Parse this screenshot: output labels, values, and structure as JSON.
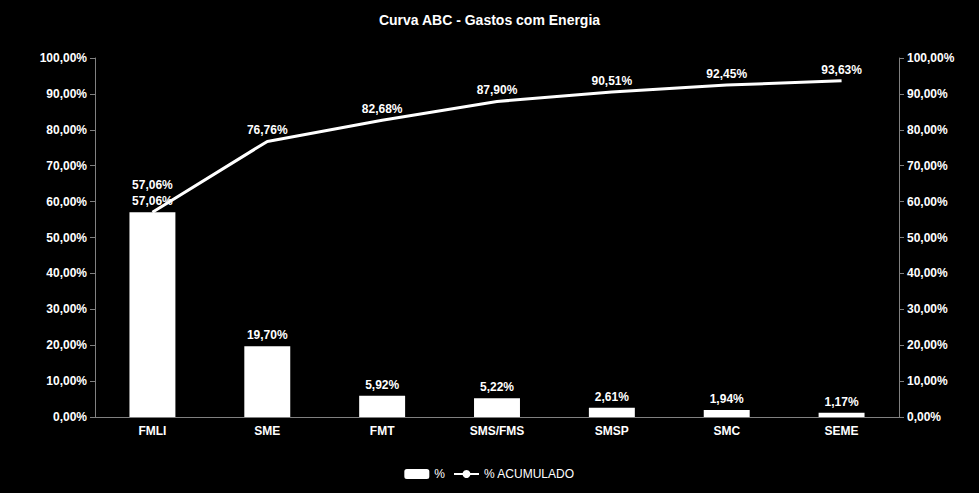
{
  "chart_data": {
    "type": "bar",
    "title": "Curva ABC - Gastos com Energia",
    "categories": [
      "FMLI",
      "SME",
      "FMT",
      "SMS/FMS",
      "SMSP",
      "SMC",
      "SEME"
    ],
    "series": [
      {
        "name": "%",
        "type": "bar",
        "color": "#ffffff",
        "values": [
          57.06,
          19.7,
          5.92,
          5.22,
          2.61,
          1.94,
          1.17
        ],
        "value_labels": [
          "57,06%",
          "19,70%",
          "5,92%",
          "5,22%",
          "2,61%",
          "1,94%",
          "1,17%"
        ]
      },
      {
        "name": "% ACUMULADO",
        "type": "line",
        "color": "#ffffff",
        "axis": "y2",
        "values": [
          57.06,
          76.76,
          82.68,
          87.9,
          90.51,
          92.45,
          93.63
        ],
        "value_labels": [
          "57,06%",
          "76,76%",
          "82,68%",
          "87,90%",
          "90,51%",
          "92,45%",
          "93,63%"
        ]
      }
    ],
    "ylim": [
      0,
      100
    ],
    "yticks": [
      {
        "value": 0,
        "label": "0,00%"
      },
      {
        "value": 10,
        "label": "10,00%"
      },
      {
        "value": 20,
        "label": "20,00%"
      },
      {
        "value": 30,
        "label": "30,00%"
      },
      {
        "value": 40,
        "label": "40,00%"
      },
      {
        "value": 50,
        "label": "50,00%"
      },
      {
        "value": 60,
        "label": "60,00%"
      },
      {
        "value": 70,
        "label": "70,00%"
      },
      {
        "value": 80,
        "label": "80,00%"
      },
      {
        "value": 90,
        "label": "90,00%"
      },
      {
        "value": 100,
        "label": "100,00%"
      }
    ],
    "y2lim": [
      0,
      100
    ],
    "y2ticks": [
      {
        "value": 0,
        "label": "0,00%"
      },
      {
        "value": 10,
        "label": "10,00%"
      },
      {
        "value": 20,
        "label": "20,00%"
      },
      {
        "value": 30,
        "label": "30,00%"
      },
      {
        "value": 40,
        "label": "40,00%"
      },
      {
        "value": 50,
        "label": "50,00%"
      },
      {
        "value": 60,
        "label": "60,00%"
      },
      {
        "value": 70,
        "label": "70,00%"
      },
      {
        "value": 80,
        "label": "80,00%"
      },
      {
        "value": 90,
        "label": "90,00%"
      },
      {
        "value": 100,
        "label": "100,00%"
      }
    ],
    "data_labels": true,
    "legend": "bottom",
    "grid": false
  }
}
